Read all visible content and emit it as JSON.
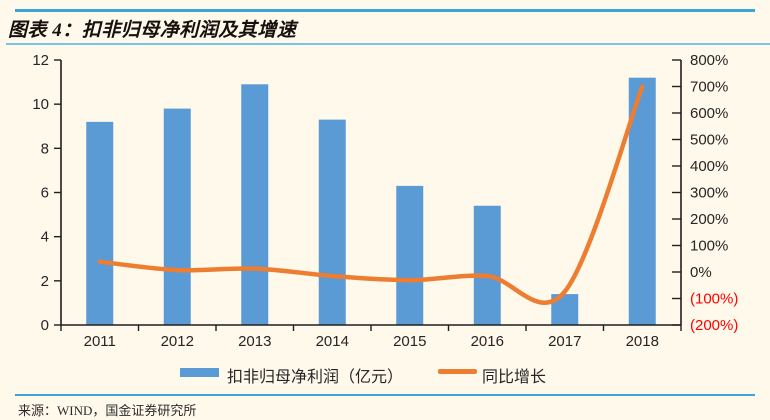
{
  "page": {
    "background": "#FFF9EC",
    "rule_color": "#39A5DB"
  },
  "header": {
    "title": "图表 4：扣非归母净利润及其增速"
  },
  "legend": {
    "bar_label": "扣非归母净利润（亿元）",
    "line_label": "同比增长"
  },
  "footer": {
    "source": "来源：WIND，国金证券研究所"
  },
  "chart_data": {
    "type": "combo",
    "title": "扣非归母净利润及其增速",
    "categories": [
      "2011",
      "2012",
      "2013",
      "2014",
      "2015",
      "2016",
      "2017",
      "2018"
    ],
    "series": [
      {
        "name": "扣非归母净利润（亿元）",
        "type": "bar",
        "y_axis": "left",
        "color": "#5B9BD5",
        "values": [
          9.2,
          9.8,
          10.9,
          9.3,
          6.3,
          5.4,
          1.4,
          11.2
        ]
      },
      {
        "name": "同比增长",
        "type": "line",
        "y_axis": "right",
        "color": "#ED7D31",
        "smooth": true,
        "unit": "%",
        "values": [
          39,
          7,
          13,
          -15,
          -31,
          -15,
          -74,
          700
        ]
      }
    ],
    "left_axis": {
      "min": 0,
      "max": 12,
      "step": 2,
      "labels": [
        "0",
        "2",
        "4",
        "6",
        "8",
        "10",
        "12"
      ]
    },
    "right_axis": {
      "min": -200,
      "max": 800,
      "step": 100,
      "labels": [
        "800%",
        "700%",
        "600%",
        "500%",
        "400%",
        "300%",
        "200%",
        "100%",
        "0%",
        "(100%)",
        "(200%)"
      ],
      "negative_style": "red-parentheses",
      "negative_color": "#FF0000"
    },
    "grid": false,
    "legend_position": "bottom",
    "text_color": "#262626",
    "axis_color": "#1f1f1f"
  }
}
